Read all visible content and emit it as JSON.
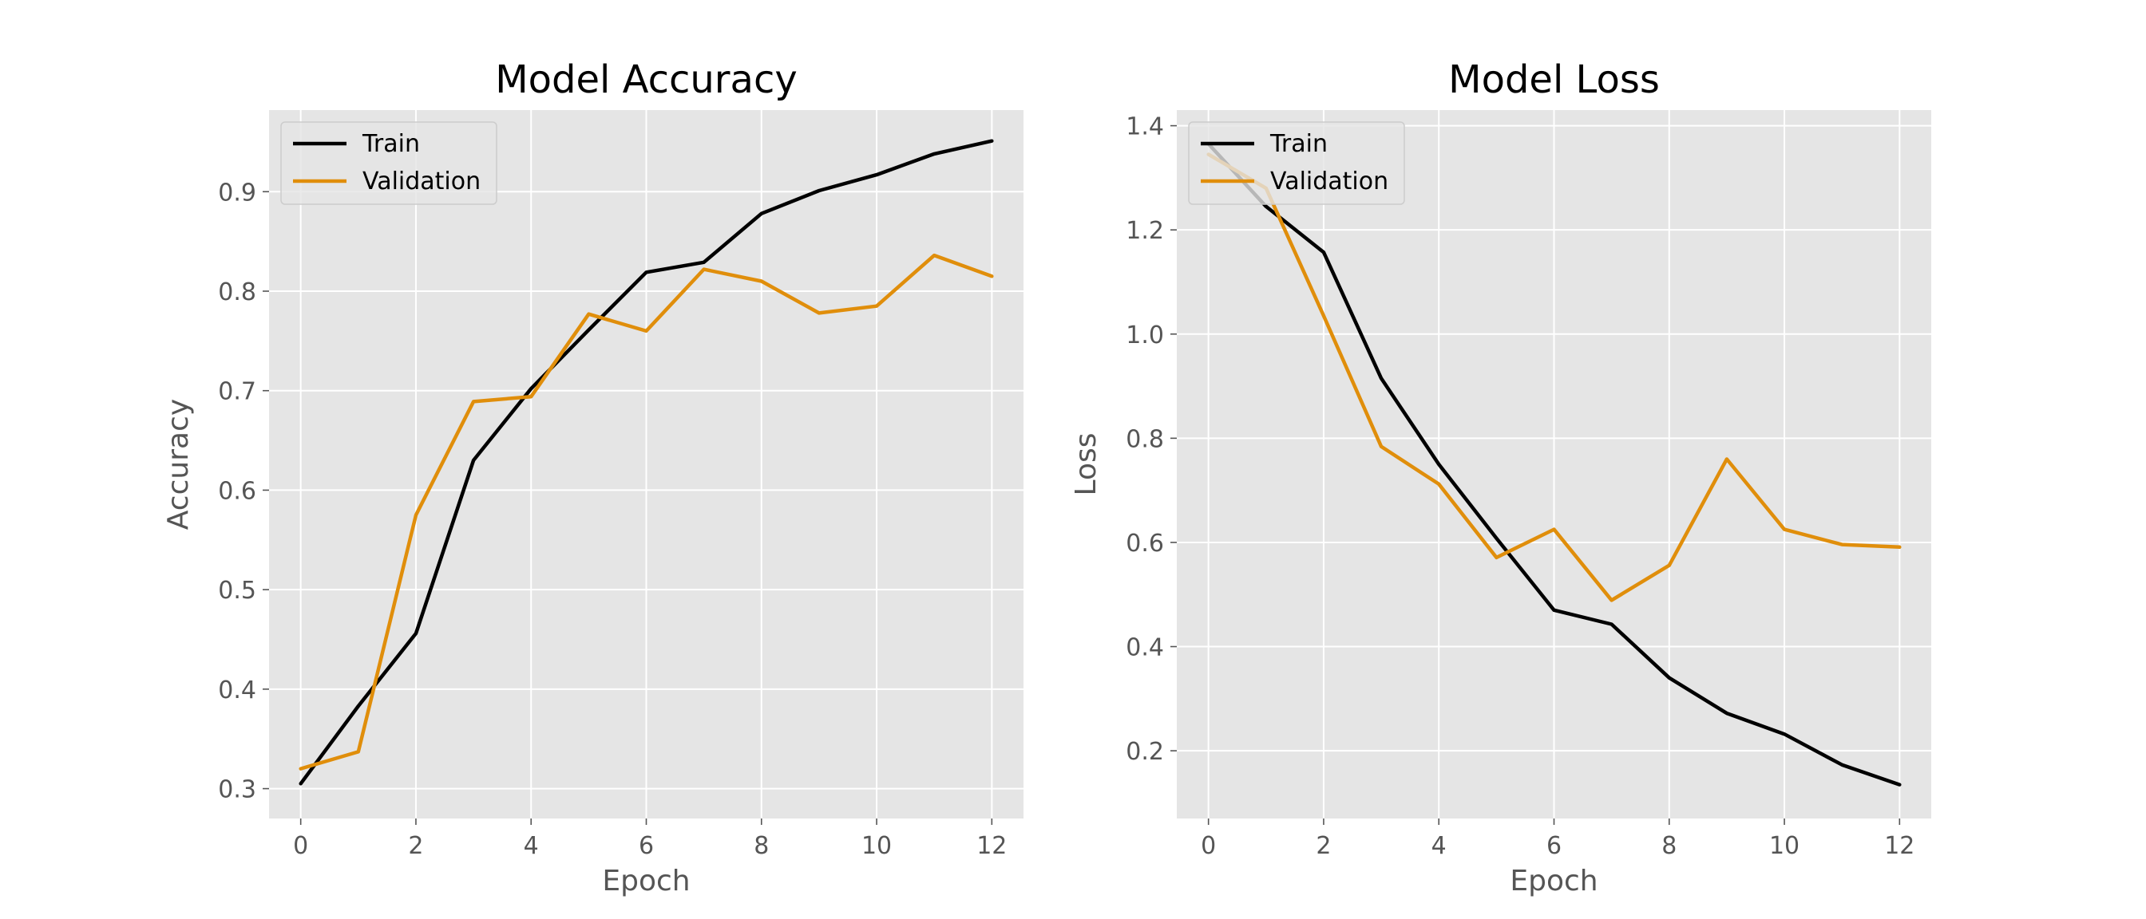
{
  "chart_data": [
    {
      "type": "line",
      "title": "Model Accuracy",
      "xlabel": "Epoch",
      "ylabel": "Accuracy",
      "xlim": [
        -0.55,
        12.55
      ],
      "ylim": [
        0.27,
        0.982
      ],
      "x_ticks": [
        0,
        2,
        4,
        6,
        8,
        10,
        12
      ],
      "x_tick_labels": [
        "0",
        "2",
        "4",
        "6",
        "8",
        "10",
        "12"
      ],
      "y_ticks": [
        0.3,
        0.4,
        0.5,
        0.6,
        0.7,
        0.8,
        0.9
      ],
      "y_tick_labels": [
        "0.3",
        "0.4",
        "0.5",
        "0.6",
        "0.7",
        "0.8",
        "0.9"
      ],
      "grid": true,
      "legend_position": "top-left",
      "x": [
        0,
        1,
        2,
        3,
        4,
        5,
        6,
        7,
        8,
        9,
        10,
        11,
        12
      ],
      "series": [
        {
          "name": "Train",
          "color": "#000000",
          "values": [
            0.305,
            0.383,
            0.456,
            0.63,
            0.702,
            0.761,
            0.819,
            0.829,
            0.878,
            0.901,
            0.917,
            0.938,
            0.951
          ]
        },
        {
          "name": "Validation",
          "color": "#e08e0b",
          "values": [
            0.32,
            0.337,
            0.575,
            0.689,
            0.694,
            0.777,
            0.76,
            0.822,
            0.81,
            0.778,
            0.785,
            0.836,
            0.815
          ]
        }
      ]
    },
    {
      "type": "line",
      "title": "Model Loss",
      "xlabel": "Epoch",
      "ylabel": "Loss",
      "xlim": [
        -0.55,
        12.55
      ],
      "ylim": [
        0.07,
        1.43
      ],
      "x_ticks": [
        0,
        2,
        4,
        6,
        8,
        10,
        12
      ],
      "x_tick_labels": [
        "0",
        "2",
        "4",
        "6",
        "8",
        "10",
        "12"
      ],
      "y_ticks": [
        0.2,
        0.4,
        0.6,
        0.8,
        1.0,
        1.2,
        1.4
      ],
      "y_tick_labels": [
        "0.2",
        "0.4",
        "0.6",
        "0.8",
        "1.0",
        "1.2",
        "1.4"
      ],
      "grid": true,
      "legend_position": "top-left",
      "x": [
        0,
        1,
        2,
        3,
        4,
        5,
        6,
        7,
        8,
        9,
        10,
        11,
        12
      ],
      "series": [
        {
          "name": "Train",
          "color": "#000000",
          "values": [
            1.365,
            1.245,
            1.157,
            0.915,
            0.75,
            0.608,
            0.47,
            0.443,
            0.34,
            0.272,
            0.232,
            0.173,
            0.135
          ]
        },
        {
          "name": "Validation",
          "color": "#e08e0b",
          "values": [
            1.345,
            1.28,
            1.035,
            0.784,
            0.712,
            0.571,
            0.625,
            0.489,
            0.556,
            0.76,
            0.625,
            0.596,
            0.591
          ]
        }
      ]
    }
  ]
}
